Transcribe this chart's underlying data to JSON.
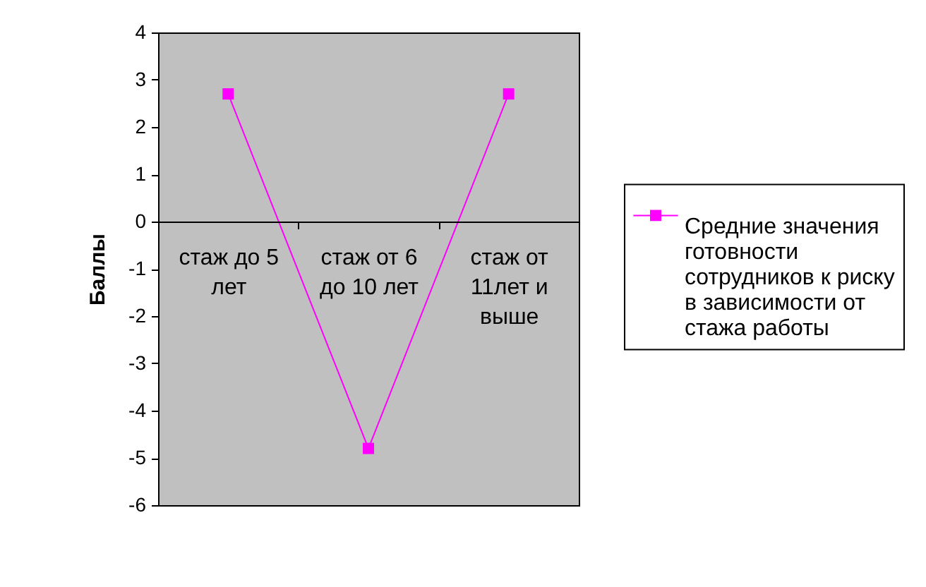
{
  "chart_data": {
    "type": "line",
    "ylabel": "Баллы",
    "categories": [
      "стаж до 5 лет",
      "стаж от 6 до 10 лет",
      "стаж от 11лет и выше"
    ],
    "series": [
      {
        "name": "Средние значения готовности сотрудников к риску в зависимости от стажа работы",
        "color": "#ff00ff",
        "values": [
          2.7,
          -4.8,
          2.7
        ]
      }
    ],
    "ylim": [
      -6,
      4
    ],
    "yticks": [
      -6,
      -5,
      -4,
      -3,
      -2,
      -1,
      0,
      1,
      2,
      3,
      4
    ],
    "grid": false,
    "legend": "right",
    "marker": "square",
    "line_style": "solid"
  }
}
